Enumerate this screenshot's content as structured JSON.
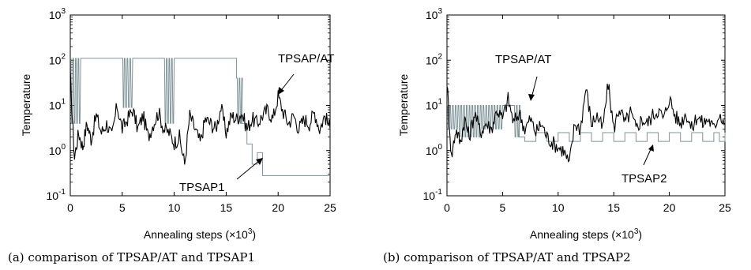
{
  "chart_data": [
    {
      "type": "line",
      "caption": "(a) comparison of TPSAP/AT and TPSAP1",
      "xlabel": "Annealing steps (×10",
      "xlabel_exp": "3",
      "xlabel_close": ")",
      "ylabel": "Temperature",
      "xlim": [
        0,
        25
      ],
      "ylim": [
        0.1,
        1000
      ],
      "yscale": "log",
      "x_ticks": [
        "0",
        "5",
        "10",
        "15",
        "20",
        "25"
      ],
      "y_ticks": [
        {
          "base": "10",
          "exp": "-1"
        },
        {
          "base": "10",
          "exp": "0"
        },
        {
          "base": "10",
          "exp": "1"
        },
        {
          "base": "10",
          "exp": "2"
        },
        {
          "base": "10",
          "exp": "3"
        }
      ],
      "series": [
        {
          "name": "TPSAP/AT",
          "color": "#000000",
          "x": [
            0,
            0.4,
            0.8,
            1.2,
            1.6,
            2,
            2.5,
            3,
            3.5,
            4,
            4.5,
            5,
            5.5,
            6,
            6.5,
            7,
            7.5,
            8,
            8.5,
            9,
            9.5,
            10,
            10.5,
            11,
            11.5,
            12,
            12.5,
            13,
            13.5,
            14,
            14.5,
            15,
            15.5,
            16,
            16.5,
            17,
            17.5,
            18,
            18.5,
            19,
            19.5,
            20,
            20.5,
            21,
            21.5,
            22,
            22.5,
            23,
            23.5,
            24,
            24.5,
            25
          ],
          "values": [
            40,
            0.7,
            2.5,
            1.2,
            4,
            1.8,
            6,
            2.5,
            4,
            2,
            10,
            3,
            5,
            8,
            3,
            6,
            2,
            4,
            7,
            3,
            2.5,
            1.5,
            2,
            0.5,
            6,
            3,
            1.5,
            5,
            4,
            3,
            9,
            2.5,
            6,
            5,
            7,
            3,
            5,
            4,
            6,
            8,
            5,
            16,
            7,
            4,
            6,
            3,
            5,
            4,
            7,
            3,
            6,
            3
          ]
        },
        {
          "name": "TPSAP1",
          "color": "#7f9499",
          "x": [
            0,
            0.5,
            1,
            2,
            3,
            5,
            5.2,
            6,
            7,
            8,
            9,
            9.5,
            10,
            11,
            12,
            14,
            15,
            16,
            16.5,
            17,
            17.5,
            18,
            18.5,
            19,
            20,
            22,
            25
          ],
          "values": [
            110,
            4,
            110,
            110,
            110,
            110,
            9,
            110,
            110,
            110,
            110,
            4,
            110,
            110,
            110,
            110,
            110,
            40,
            4,
            1.4,
            0.5,
            0.9,
            0.28,
            0.28,
            0.28,
            0.28,
            0.28
          ]
        }
      ],
      "annotations": [
        {
          "text": "TPSAP/AT"
        },
        {
          "text": "TPSAP1"
        }
      ]
    },
    {
      "type": "line",
      "caption": "(b) comparison of TPSAP/AT and TPSAP2",
      "xlabel": "Annealing steps (×10",
      "xlabel_exp": "3",
      "xlabel_close": ")",
      "ylabel": "Temperature",
      "xlim": [
        0,
        25
      ],
      "ylim": [
        0.1,
        1000
      ],
      "yscale": "log",
      "x_ticks": [
        "0",
        "5",
        "10",
        "15",
        "20",
        "25"
      ],
      "y_ticks": [
        {
          "base": "10",
          "exp": "-1"
        },
        {
          "base": "10",
          "exp": "0"
        },
        {
          "base": "10",
          "exp": "1"
        },
        {
          "base": "10",
          "exp": "2"
        },
        {
          "base": "10",
          "exp": "3"
        }
      ],
      "series": [
        {
          "name": "TPSAP/AT",
          "color": "#000000",
          "x": [
            0,
            0.4,
            0.8,
            1.2,
            1.6,
            2,
            2.5,
            3,
            3.5,
            4,
            4.5,
            5,
            5.5,
            6,
            6.5,
            7,
            7.5,
            8,
            8.5,
            9,
            9.5,
            10,
            10.5,
            11,
            11.5,
            12,
            12.5,
            13,
            13.5,
            14,
            14.5,
            15,
            15.5,
            16,
            16.5,
            17,
            17.5,
            18,
            18.5,
            19,
            19.5,
            20,
            20.5,
            21,
            21.5,
            22,
            22.5,
            23,
            23.5,
            24,
            24.5,
            25
          ],
          "values": [
            35,
            0.7,
            3,
            1.5,
            5,
            2,
            7,
            2.5,
            4,
            3,
            8,
            5,
            14,
            4,
            7,
            3,
            5,
            2.5,
            4,
            2,
            1.5,
            1.2,
            1,
            0.5,
            4,
            3,
            25,
            4,
            6,
            3,
            30,
            3,
            9,
            4,
            7,
            3,
            5,
            4,
            6,
            8,
            5,
            15,
            6,
            4,
            7,
            3,
            6,
            4,
            5,
            3,
            7,
            4
          ]
        },
        {
          "name": "TPSAP2",
          "color": "#7f9499",
          "x": [
            0,
            0.5,
            1,
            2,
            3,
            4,
            5,
            6,
            6.5,
            7,
            8,
            9,
            10,
            11,
            12,
            13,
            14,
            15,
            16,
            17,
            18,
            19,
            20,
            21,
            22,
            23,
            24,
            24.5,
            25
          ],
          "values": [
            10,
            3,
            10,
            2,
            10,
            3,
            10,
            10,
            2,
            1.6,
            2.5,
            1.6,
            2.5,
            1.6,
            2.5,
            1.6,
            2.5,
            1.6,
            2.5,
            1.6,
            2.5,
            1.6,
            2.5,
            1.6,
            2.5,
            1.6,
            2.5,
            1.6,
            2.5
          ]
        }
      ],
      "annotations": [
        {
          "text": "TPSAP/AT"
        },
        {
          "text": "TPSAP2"
        }
      ]
    }
  ]
}
